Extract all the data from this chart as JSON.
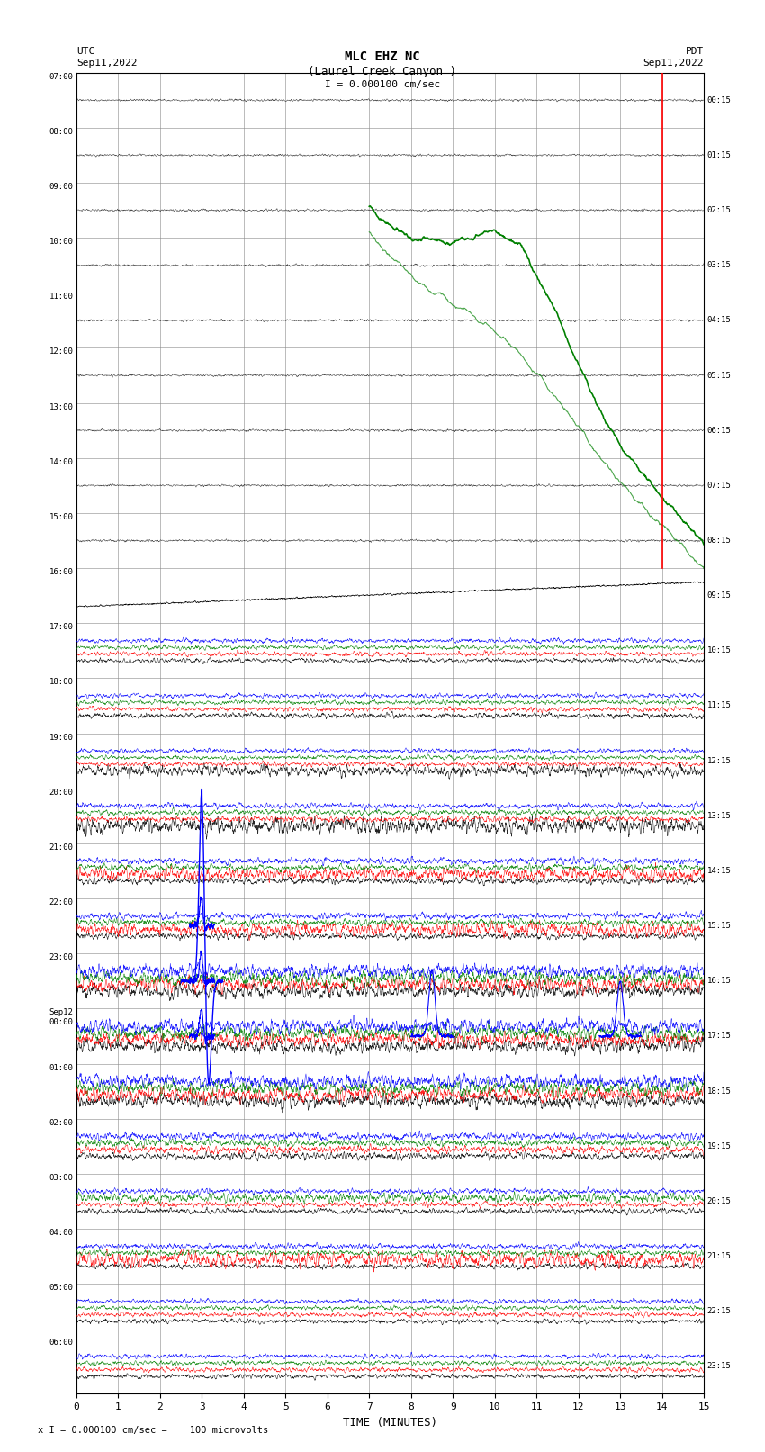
{
  "title_line1": "MLC EHZ NC",
  "title_line2": "(Laurel Creek Canyon )",
  "scale_label": "I = 0.000100 cm/sec",
  "utc_label": "UTC\nSep11,2022",
  "pdt_label": "PDT\nSep11,2022",
  "xlabel": "TIME (MINUTES)",
  "footer": "x I = 0.000100 cm/sec =    100 microvolts",
  "xlim": [
    0,
    15
  ],
  "xticks": [
    0,
    1,
    2,
    3,
    4,
    5,
    6,
    7,
    8,
    9,
    10,
    11,
    12,
    13,
    14,
    15
  ],
  "left_times": [
    "07:00",
    "08:00",
    "09:00",
    "10:00",
    "11:00",
    "12:00",
    "13:00",
    "14:00",
    "15:00",
    "16:00",
    "17:00",
    "18:00",
    "19:00",
    "20:00",
    "21:00",
    "22:00",
    "23:00",
    "Sep12\n00:00",
    "01:00",
    "02:00",
    "03:00",
    "04:00",
    "05:00",
    "06:00"
  ],
  "right_times": [
    "00:15",
    "01:15",
    "02:15",
    "03:15",
    "04:15",
    "05:15",
    "06:15",
    "07:15",
    "08:15",
    "09:15",
    "10:15",
    "11:15",
    "12:15",
    "13:15",
    "14:15",
    "15:15",
    "16:15",
    "17:15",
    "18:15",
    "19:15",
    "20:15",
    "21:15",
    "22:15",
    "23:15"
  ],
  "n_rows": 24,
  "bg_color": "#ffffff",
  "grid_color": "#888888",
  "trace_colors": [
    "black",
    "red",
    "green",
    "blue"
  ],
  "fig_width": 8.5,
  "fig_height": 16.13
}
